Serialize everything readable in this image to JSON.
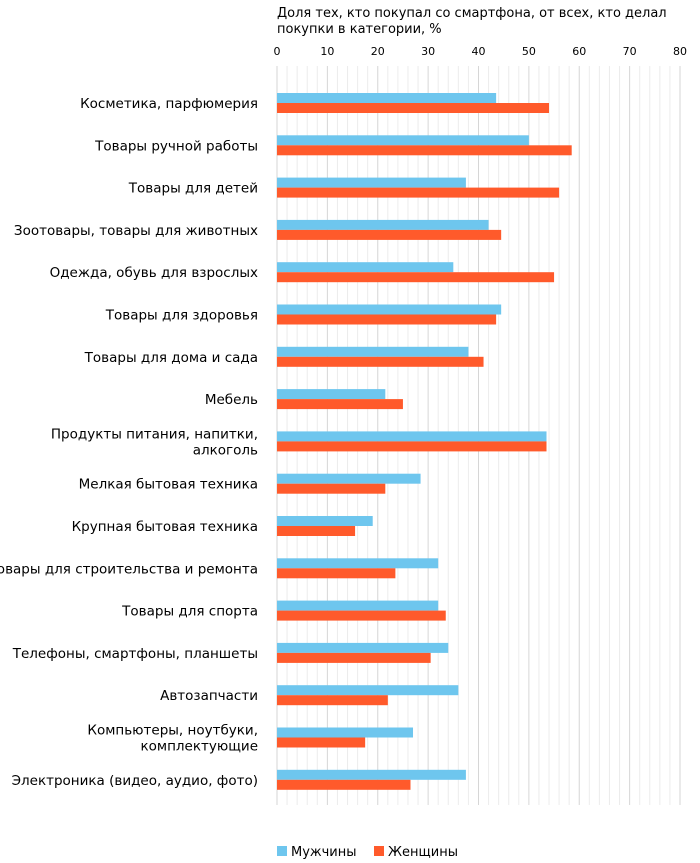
{
  "chart_data": {
    "type": "bar",
    "orientation": "horizontal",
    "title": "",
    "xlabel": "Доля тех, кто покупал со смартфона, от всех, кто делал покупки в категории, %",
    "xlabel_lines": [
      "Доля тех, кто покупал со смартфона, от всех, кто делал",
      "покупки в категории, %"
    ],
    "xlim": [
      0,
      80
    ],
    "xticks": [
      0,
      10,
      20,
      30,
      40,
      50,
      60,
      70,
      80
    ],
    "grid": true,
    "legend_position": "bottom",
    "categories": [
      "Косметика, парфюмерия",
      "Товары ручной работы",
      "Товары для детей",
      "Зоотовары, товары для животных",
      "Одежда, обувь для взрослых",
      "Товары для здоровья",
      "Товары для дома и сада",
      "Мебель",
      "Продукты питания, напитки, алкоголь",
      "Мелкая бытовая техника",
      "Крупная бытовая техника",
      "Товары для строительства и ремонта",
      "Товары для спорта",
      "Телефоны, смартфоны, планшеты",
      "Автозапчасти",
      "Компьютеры, ноутбуки, комплектующие",
      "Электроника (видео, аудио, фото)"
    ],
    "category_lines": [
      [
        "Косметика, парфюмерия"
      ],
      [
        "Товары ручной работы"
      ],
      [
        "Товары для детей"
      ],
      [
        "Зоотовары, товары для животных"
      ],
      [
        "Одежда, обувь для взрослых"
      ],
      [
        "Товары для здоровья"
      ],
      [
        "Товары для дома и сада"
      ],
      [
        "Мебель"
      ],
      [
        "Продукты питания, напитки,",
        "алкоголь"
      ],
      [
        "Мелкая бытовая техника"
      ],
      [
        "Крупная бытовая техника"
      ],
      [
        "Товары для строительства и ремонта"
      ],
      [
        "Товары для спорта"
      ],
      [
        "Телефоны, смартфоны, планшеты"
      ],
      [
        "Автозапчасти"
      ],
      [
        "Компьютеры, ноутбуки,",
        "комплектующие"
      ],
      [
        "Электроника (видео, аудио, фото)"
      ]
    ],
    "series": [
      {
        "name": "Мужчины",
        "color": "#6ec6ee",
        "values": [
          43.5,
          50,
          37.5,
          42,
          35,
          44.5,
          38,
          21.5,
          53.5,
          28.5,
          19,
          32,
          32,
          34,
          36,
          27,
          37.5
        ]
      },
      {
        "name": "Женщины",
        "color": "#ff5a2b",
        "values": [
          54,
          58.5,
          56,
          44.5,
          55,
          43.5,
          41,
          25,
          53.5,
          21.5,
          15.5,
          23.5,
          33.5,
          30.5,
          22,
          17.5,
          26.5
        ]
      }
    ]
  }
}
